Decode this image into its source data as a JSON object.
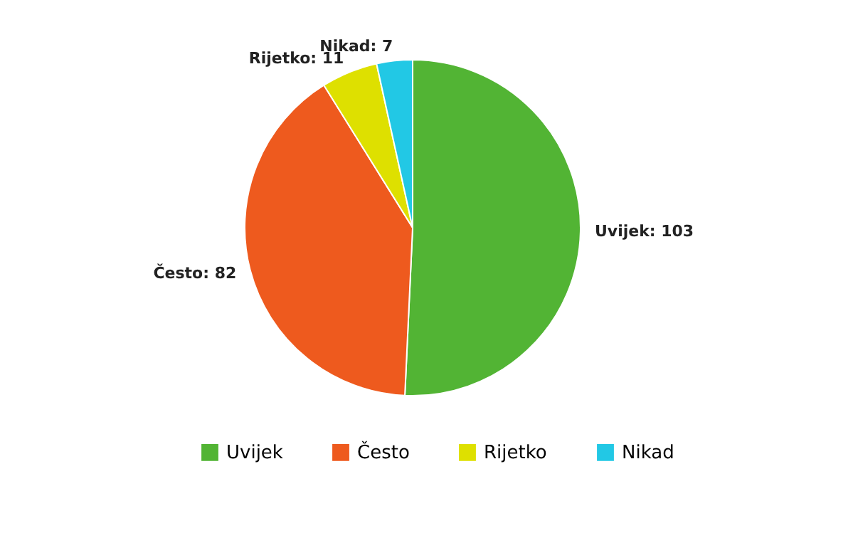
{
  "chart_data": {
    "type": "pie",
    "categories": [
      "Uvijek",
      "Često",
      "Rijetko",
      "Nikad"
    ],
    "values": [
      103,
      82,
      11,
      7
    ],
    "colors": [
      "#52b434",
      "#ee5a1e",
      "#dee000",
      "#22c8e5"
    ],
    "value_labels": [
      "Uvijek: 103",
      "Često: 82",
      "Rijetko: 11",
      "Nikad: 7"
    ],
    "legend": "bottom"
  }
}
